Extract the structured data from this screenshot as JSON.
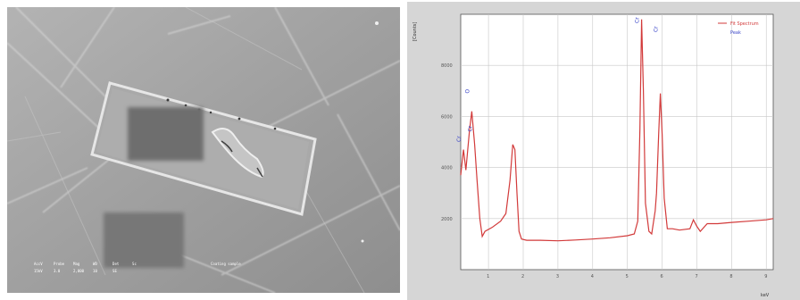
{
  "sem": {
    "info_headers": [
      "AccV",
      "Probe",
      "Mag",
      "WD",
      "Det",
      "Sc"
    ],
    "info_values": [
      "15kV",
      "3.0",
      "2,000",
      "10",
      "SE",
      ""
    ],
    "description": "Coating sample"
  },
  "colors": {
    "spectrum_line": "#d23a3a",
    "peak_label": "#3a45c8",
    "legend_fit": "#d23a3a",
    "legend_peak": "#3a45c8"
  },
  "chart_data": {
    "type": "line",
    "ylabel": "[Counts]",
    "xlabel": "keV",
    "xlim": [
      0.2,
      9.2
    ],
    "ylim": [
      0,
      10000
    ],
    "x_ticks": [
      "1",
      "2",
      "3",
      "4",
      "5",
      "6",
      "7",
      "8",
      "9"
    ],
    "y_ticks": [
      "2000",
      "4000",
      "6000",
      "8000"
    ],
    "legend": [
      "Fit Spectrum",
      "Peak"
    ],
    "peak_labels": [
      {
        "x": 0.28,
        "y": 5000,
        "text": "Cr"
      },
      {
        "x": 0.52,
        "y": 6900,
        "text": "O"
      },
      {
        "x": 0.6,
        "y": 5400,
        "text": "Cr"
      },
      {
        "x": 5.41,
        "y": 14000,
        "text": "Cr"
      },
      {
        "x": 5.95,
        "y": 9300,
        "text": "Cr"
      }
    ],
    "series": [
      {
        "x": [
          0.2,
          0.28,
          0.35,
          0.45,
          0.52,
          0.6,
          0.67,
          0.75,
          0.82,
          0.9,
          1.1,
          1.35,
          1.5,
          1.62,
          1.7,
          1.76,
          1.82,
          1.88,
          1.95,
          2.1,
          2.5,
          3.0,
          3.5,
          4.0,
          4.5,
          5.0,
          5.2,
          5.3,
          5.36,
          5.41,
          5.46,
          5.52,
          5.62,
          5.7,
          5.8,
          5.84,
          5.9,
          5.95,
          6.0,
          6.06,
          6.15,
          6.3,
          6.5,
          6.8,
          6.9,
          7.0,
          7.1,
          7.3,
          7.6,
          8.0,
          8.5,
          9.0,
          9.2
        ],
        "y": [
          3700,
          4700,
          3900,
          5400,
          6200,
          4900,
          3500,
          2000,
          1300,
          1500,
          1650,
          1900,
          2200,
          3500,
          4900,
          4700,
          3000,
          1500,
          1200,
          1150,
          1150,
          1130,
          1160,
          1200,
          1250,
          1330,
          1400,
          1900,
          5500,
          9800,
          7000,
          2600,
          1500,
          1400,
          2300,
          3000,
          5300,
          6900,
          5300,
          2800,
          1600,
          1600,
          1550,
          1600,
          1950,
          1700,
          1500,
          1800,
          1800,
          1850,
          1900,
          1950,
          2000
        ]
      }
    ]
  }
}
